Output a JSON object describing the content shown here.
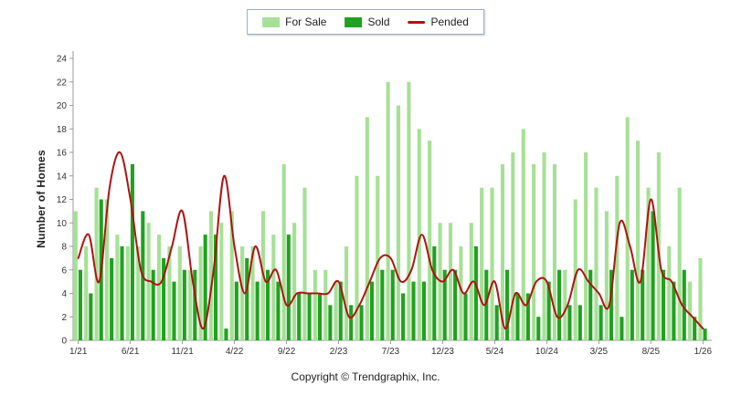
{
  "footer": {
    "copyright": "Copyright © Trendgraphix, Inc."
  },
  "chart_data": {
    "type": "bar",
    "title": "",
    "xlabel": "",
    "ylabel": "Number of Homes",
    "ylim": [
      0,
      24
    ],
    "y_tick_step": 2,
    "x_tick_every": 5,
    "grid": false,
    "legend_position": "top-center",
    "axis_color": "#9a9a9a",
    "tick_text_color": "#333333",
    "categories": [
      "1/21",
      "2/21",
      "3/21",
      "4/21",
      "5/21",
      "6/21",
      "7/21",
      "8/21",
      "9/21",
      "10/21",
      "11/21",
      "12/21",
      "1/22",
      "2/22",
      "3/22",
      "4/22",
      "5/22",
      "6/22",
      "7/22",
      "8/22",
      "9/22",
      "10/22",
      "11/22",
      "12/22",
      "1/23",
      "2/23",
      "3/23",
      "4/23",
      "5/23",
      "6/23",
      "7/23",
      "8/23",
      "9/23",
      "10/23",
      "11/23",
      "12/23",
      "1/24",
      "2/24",
      "3/24",
      "4/24",
      "5/24",
      "6/24",
      "7/24",
      "8/24",
      "9/24",
      "10/24",
      "11/24",
      "12/24",
      "1/25",
      "2/25",
      "3/25",
      "4/25",
      "5/25",
      "6/25",
      "7/25",
      "8/25",
      "9/25",
      "10/25",
      "11/25",
      "12/25",
      "1/26"
    ],
    "series": [
      {
        "name": "For Sale",
        "type": "bar",
        "color": "#a6e096",
        "values": [
          11,
          8,
          13,
          12,
          9,
          8,
          8,
          10,
          9,
          8,
          8,
          6,
          8,
          11,
          10,
          11,
          8,
          8,
          11,
          9,
          15,
          10,
          13,
          6,
          6,
          5,
          8,
          14,
          19,
          14,
          22,
          20,
          22,
          18,
          17,
          10,
          10,
          8,
          10,
          13,
          13,
          15,
          16,
          18,
          15,
          16,
          15,
          6,
          12,
          16,
          13,
          11,
          14,
          19,
          17,
          13,
          16,
          8,
          13,
          5,
          7
        ]
      },
      {
        "name": "Sold",
        "type": "bar",
        "color": "#1fa21f",
        "values": [
          6,
          4,
          12,
          7,
          8,
          15,
          11,
          6,
          7,
          5,
          6,
          6,
          9,
          9,
          1,
          5,
          7,
          5,
          6,
          5,
          9,
          4,
          4,
          4,
          3,
          5,
          3,
          3,
          5,
          6,
          6,
          4,
          5,
          5,
          8,
          6,
          6,
          4,
          8,
          6,
          3,
          6,
          4,
          4,
          2,
          5,
          6,
          3,
          3,
          6,
          3,
          6,
          2,
          6,
          6,
          11,
          6,
          5,
          6,
          2,
          1
        ]
      },
      {
        "name": "Pended",
        "type": "line",
        "color": "#b01212",
        "values": [
          7,
          9,
          5,
          13,
          16,
          12,
          6,
          5,
          5,
          8,
          11,
          5,
          1,
          6,
          14,
          8,
          4,
          8,
          5,
          6,
          3,
          4,
          4,
          4,
          4,
          5,
          2,
          3,
          5,
          7,
          7,
          5,
          6,
          9,
          6,
          5,
          6,
          4,
          5,
          3,
          5,
          1,
          4,
          3,
          5,
          5,
          2,
          3,
          6,
          5,
          4,
          3,
          10,
          8,
          5,
          12,
          6,
          5,
          3,
          2,
          1
        ]
      }
    ]
  }
}
